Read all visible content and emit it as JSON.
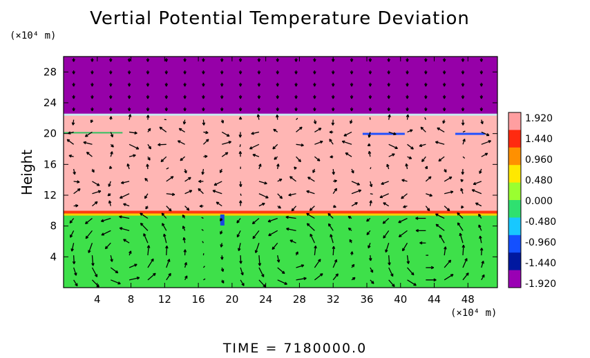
{
  "chart_data": {
    "type": "heatmap",
    "title": "Vertial Potential Temperature Deviation",
    "xlabel": "",
    "ylabel": "Height",
    "y_unit_label": "(×10⁴ m)",
    "x_unit_label": "(×10⁴ m)",
    "xlim": [
      0,
      51.5
    ],
    "ylim": [
      0,
      30
    ],
    "x_ticks": [
      "4",
      "8",
      "12",
      "16",
      "20",
      "24",
      "28",
      "32",
      "36",
      "40",
      "44",
      "48"
    ],
    "x_tick_values": [
      4,
      8,
      12,
      16,
      20,
      24,
      28,
      32,
      36,
      40,
      44,
      48
    ],
    "y_ticks": [
      "4",
      "8",
      "12",
      "16",
      "20",
      "24",
      "28"
    ],
    "y_tick_values": [
      4,
      8,
      12,
      16,
      20,
      24,
      28
    ],
    "colorbar": {
      "labels": [
        "1.920",
        "1.440",
        "0.960",
        "0.480",
        "0.000",
        "-0.480",
        "-0.960",
        "-1.440",
        "-1.920"
      ],
      "values": [
        1.92,
        1.44,
        0.96,
        0.48,
        0.0,
        -0.48,
        -0.96,
        -1.44,
        -1.92
      ],
      "colors": [
        "#ff9ea0",
        "#ff2a10",
        "#ff9000",
        "#ffe800",
        "#9aff30",
        "#2fe070",
        "#18c8ff",
        "#1450ff",
        "#0018a0",
        "#9a00b4"
      ]
    },
    "regions": [
      {
        "y_range": [
          22.5,
          30
        ],
        "value": -1.92,
        "color": "#9600a8"
      },
      {
        "y_range": [
          9.8,
          22.5
        ],
        "value": 1.92,
        "color": "#ffb6b4"
      },
      {
        "y_range": [
          0,
          9.8
        ],
        "value": 0.0,
        "color": "#3ee04a"
      }
    ],
    "vortices_x_centers": [
      7,
      27,
      43
    ],
    "vortex_y_center": 4.5,
    "grid": false,
    "legend_position": "right"
  },
  "footer": {
    "time_text": "TIME = 7180000.0"
  }
}
